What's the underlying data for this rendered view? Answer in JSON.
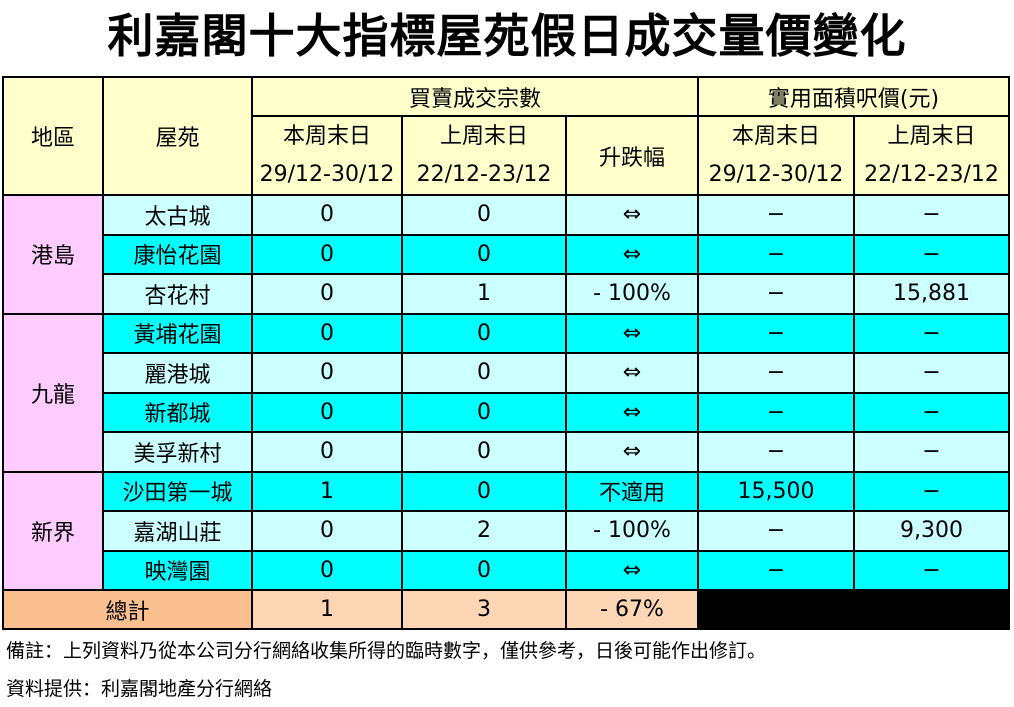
{
  "title": "利嘉閣十大指標屋苑假日成交量價變化",
  "headers": {
    "district": "地區",
    "estate": "屋苑",
    "transactions_group": "買賣成交宗數",
    "price_group": "實用面積呎價(元)",
    "this_weekend": "本周末日",
    "this_weekend_dates": "29/12-30/12",
    "last_weekend": "上周末日",
    "last_weekend_dates": "22/12-23/12",
    "change": "升跌幅"
  },
  "colors": {
    "header": "#ffffcc",
    "district": "#ffccff",
    "row_light": "#ccffff",
    "row_cyan": "#00ffff",
    "total_label": "#fabf8f",
    "total_value": "#fcd5b4"
  },
  "regions": [
    {
      "name": "港島",
      "rows": [
        {
          "estate": "太古城",
          "this_tx": "0",
          "last_tx": "0",
          "change": "⇔",
          "this_price": "−",
          "last_price": "−"
        },
        {
          "estate": "康怡花園",
          "this_tx": "0",
          "last_tx": "0",
          "change": "⇔",
          "this_price": "−",
          "last_price": "−"
        },
        {
          "estate": "杏花村",
          "this_tx": "0",
          "last_tx": "1",
          "change": "- 100%",
          "this_price": "−",
          "last_price": "15,881"
        }
      ]
    },
    {
      "name": "九龍",
      "rows": [
        {
          "estate": "黃埔花園",
          "this_tx": "0",
          "last_tx": "0",
          "change": "⇔",
          "this_price": "−",
          "last_price": "−"
        },
        {
          "estate": "麗港城",
          "this_tx": "0",
          "last_tx": "0",
          "change": "⇔",
          "this_price": "−",
          "last_price": "−"
        },
        {
          "estate": "新都城",
          "this_tx": "0",
          "last_tx": "0",
          "change": "⇔",
          "this_price": "−",
          "last_price": "−"
        },
        {
          "estate": "美孚新村",
          "this_tx": "0",
          "last_tx": "0",
          "change": "⇔",
          "this_price": "−",
          "last_price": "−"
        }
      ]
    },
    {
      "name": "新界",
      "rows": [
        {
          "estate": "沙田第一城",
          "this_tx": "1",
          "last_tx": "0",
          "change": "不適用",
          "this_price": "15,500",
          "last_price": "−"
        },
        {
          "estate": "嘉湖山莊",
          "this_tx": "0",
          "last_tx": "2",
          "change": "- 100%",
          "this_price": "−",
          "last_price": "9,300"
        },
        {
          "estate": "映灣園",
          "this_tx": "0",
          "last_tx": "0",
          "change": "⇔",
          "this_price": "−",
          "last_price": "−"
        }
      ]
    }
  ],
  "total": {
    "label": "總計",
    "this_tx": "1",
    "last_tx": "3",
    "change": "- 67%"
  },
  "notes": {
    "remark": "備註：上列資料乃從本公司分行網絡收集所得的臨時數字，僅供參考，日後可能作出修訂。",
    "source": "資料提供：利嘉閣地產分行網絡"
  }
}
